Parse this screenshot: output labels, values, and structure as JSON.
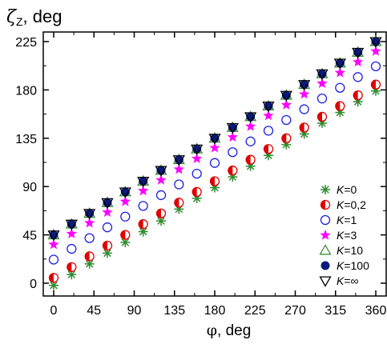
{
  "chart_data": {
    "type": "scatter",
    "ylabel_symbol": "ζ",
    "ylabel_sub": "Z",
    "ylabel_unit": ", deg",
    "xlabel_symbol": "φ",
    "xlabel_unit": ", deg",
    "xlim": [
      -7,
      370
    ],
    "ylim": [
      -15,
      235
    ],
    "xticks": [
      0,
      45,
      90,
      135,
      180,
      225,
      270,
      315,
      360
    ],
    "yticks": [
      0,
      45,
      90,
      135,
      180,
      225
    ],
    "x": [
      0,
      20,
      40,
      60,
      80,
      100,
      120,
      140,
      160,
      180,
      200,
      220,
      240,
      260,
      280,
      300,
      320,
      340,
      360
    ],
    "grid": false,
    "legend_position": "bottom-right",
    "series": [
      {
        "name": "K=0",
        "label_var": "K",
        "label_val": "=0",
        "marker": "asterisk",
        "color": "#2e8b2e",
        "values": [
          -2,
          8,
          18,
          28,
          38,
          48,
          58,
          69,
          79,
          89,
          99,
          109,
          119,
          129,
          139,
          149,
          159,
          169,
          179
        ]
      },
      {
        "name": "K=0,2",
        "label_var": "K",
        "label_val": "=0,2",
        "marker": "half-circle",
        "color": "#e00000",
        "values": [
          5,
          15,
          25,
          35,
          45,
          55,
          65,
          75,
          85,
          95,
          105,
          115,
          125,
          135,
          145,
          155,
          165,
          175,
          185
        ]
      },
      {
        "name": "K=1",
        "label_var": "K",
        "label_val": "=1",
        "marker": "open-circle",
        "color": "#2020e0",
        "values": [
          22,
          32,
          42,
          52,
          62,
          72,
          82,
          92,
          102,
          112,
          122,
          132,
          142,
          152,
          162,
          172,
          182,
          192,
          202
        ]
      },
      {
        "name": "K=3",
        "label_var": "K",
        "label_val": "=3",
        "marker": "star",
        "color": "#ff00ff",
        "values": [
          36,
          46,
          56,
          66,
          76,
          86,
          96,
          106,
          116,
          126,
          136,
          146,
          156,
          166,
          176,
          186,
          196,
          206,
          216
        ]
      },
      {
        "name": "K=10",
        "label_var": "K",
        "label_val": "=10",
        "marker": "open-triangle",
        "color": "#2e8b2e",
        "values": [
          45,
          55,
          65,
          75,
          85,
          95,
          105,
          115,
          125,
          135,
          145,
          155,
          165,
          175,
          185,
          195,
          205,
          215,
          225
        ]
      },
      {
        "name": "K=100",
        "label_var": "K",
        "label_val": "=100",
        "marker": "filled-circle",
        "color": "#0a1a7a",
        "values": [
          45,
          55,
          65,
          75,
          85,
          95,
          105,
          115,
          125,
          135,
          145,
          155,
          165,
          175,
          185,
          195,
          205,
          215,
          225
        ]
      },
      {
        "name": "K=∞",
        "label_var": "K",
        "label_val": "=∞",
        "marker": "open-triangle-down",
        "color": "#000000",
        "values": [
          45,
          55,
          65,
          75,
          85,
          95,
          105,
          115,
          125,
          135,
          145,
          155,
          165,
          175,
          185,
          195,
          205,
          215,
          225
        ]
      }
    ]
  }
}
